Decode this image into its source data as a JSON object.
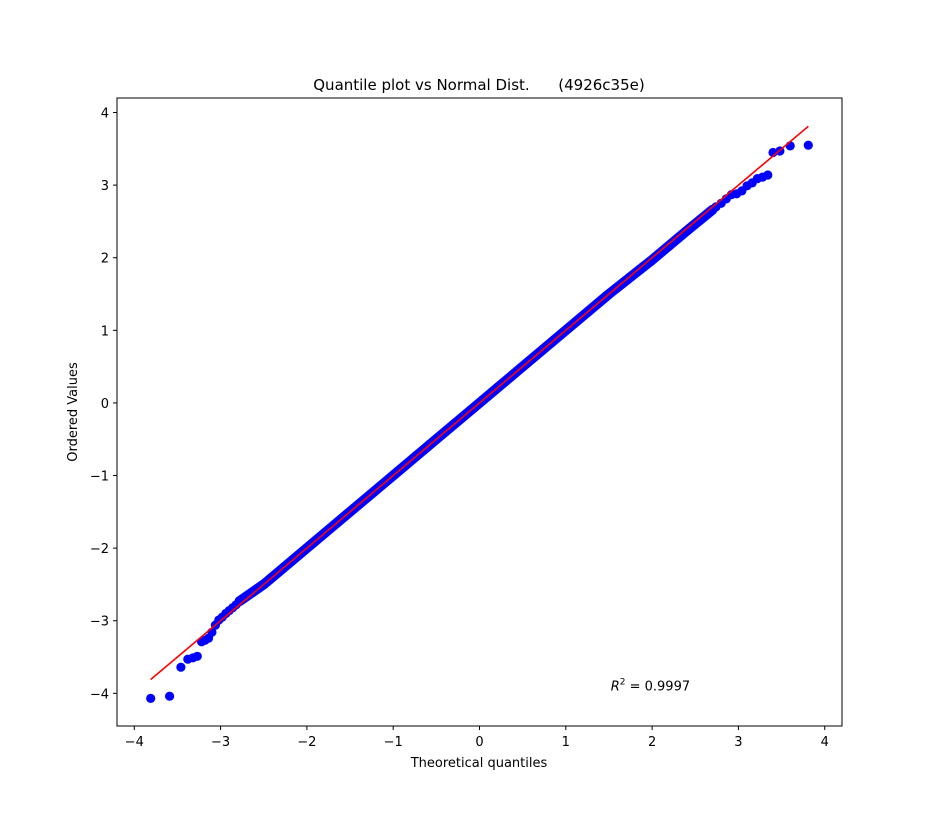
{
  "chart_data": {
    "type": "scatter",
    "title": "Quantile plot vs Normal Dist.      (4926c35e)",
    "xlabel": "Theoretical quantiles",
    "ylabel": "Ordered Values",
    "xlim": [
      -4.2,
      4.2
    ],
    "ylim": [
      -4.45,
      4.2
    ],
    "xticks": [
      -4,
      -3,
      -2,
      -1,
      0,
      1,
      2,
      3,
      4
    ],
    "yticks": [
      -4,
      -3,
      -2,
      -1,
      0,
      1,
      2,
      3,
      4
    ],
    "xtick_labels": [
      "−4",
      "−3",
      "−2",
      "−1",
      "0",
      "1",
      "2",
      "3",
      "4"
    ],
    "ytick_labels": [
      "−4",
      "−3",
      "−2",
      "−1",
      "0",
      "1",
      "2",
      "3",
      "4"
    ],
    "grid": false,
    "series": [
      {
        "kind": "points",
        "color": "#0000ff",
        "x": [
          -3.81,
          -3.59,
          -3.46,
          -3.38,
          -3.32,
          -3.27,
          -3.22,
          -3.18,
          -3.14,
          -3.1,
          -3.06,
          -3.02,
          -2.98,
          -2.94,
          -2.9,
          -2.86,
          -2.82,
          -2.78
        ],
        "y": [
          -4.07,
          -4.04,
          -3.64,
          -3.53,
          -3.51,
          -3.49,
          -3.29,
          -3.27,
          -3.24,
          -3.16,
          -3.06,
          -2.99,
          -2.95,
          -2.9,
          -2.86,
          -2.82,
          -2.78,
          -2.73
        ]
      },
      {
        "kind": "dense-band",
        "color": "#0000ff",
        "x": [
          -2.78,
          -2.5,
          -2.0,
          -1.5,
          -1.0,
          -0.5,
          0.0,
          0.5,
          1.0,
          1.5,
          2.0,
          2.4,
          2.7
        ],
        "y": [
          -2.73,
          -2.5,
          -2.0,
          -1.5,
          -1.0,
          -0.5,
          0.0,
          0.5,
          1.0,
          1.5,
          1.97,
          2.37,
          2.66
        ]
      },
      {
        "kind": "points",
        "color": "#0000ff",
        "x": [
          2.74,
          2.8,
          2.86,
          2.92,
          2.98,
          3.04,
          3.1,
          3.16,
          3.22,
          3.28,
          3.34,
          3.4,
          3.48,
          3.6,
          3.81
        ],
        "y": [
          2.7,
          2.75,
          2.81,
          2.87,
          2.88,
          2.92,
          2.99,
          3.03,
          3.09,
          3.11,
          3.14,
          3.45,
          3.47,
          3.54,
          3.55
        ]
      }
    ],
    "fit_line": {
      "color": "#ff0000",
      "x": [
        -3.81,
        3.81
      ],
      "y": [
        -3.81,
        3.81
      ]
    },
    "annotation": {
      "prefix": "R",
      "sup": "2",
      "suffix": " = 0.9997",
      "x": 1.52,
      "y": -3.96
    }
  }
}
